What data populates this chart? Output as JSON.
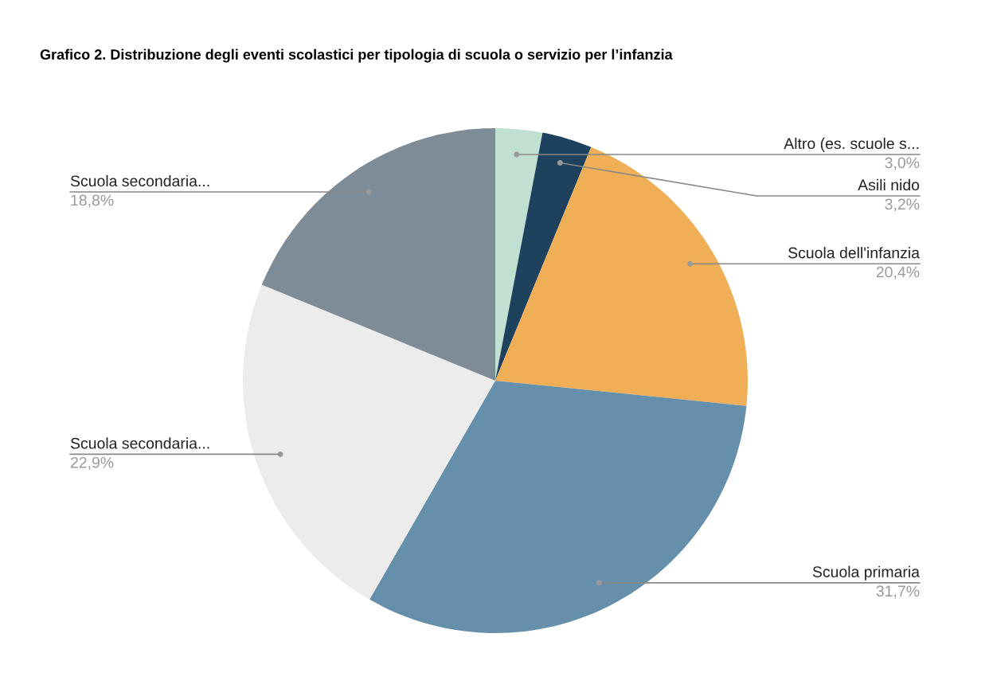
{
  "chart_data": {
    "type": "pie",
    "title": "Grafico 2. Distribuzione degli eventi scolastici per tipologia di scuola o servizio per l’infanzia",
    "categories": [
      "Altro (es. scuole s...",
      "Asili nido",
      "Scuola dell'infanzia",
      "Scuola primaria",
      "Scuola secondaria...",
      "Scuola secondaria..."
    ],
    "values": [
      3.0,
      3.2,
      20.4,
      31.7,
      22.9,
      18.8
    ],
    "value_labels": [
      "3,0%",
      "3,2%",
      "20,4%",
      "31,7%",
      "22,9%",
      "18,8%"
    ],
    "colors": [
      "#c2e0d1",
      "#1e425d",
      "#f0ae56",
      "#668fab",
      "#ececec",
      "#7d8c97"
    ]
  }
}
